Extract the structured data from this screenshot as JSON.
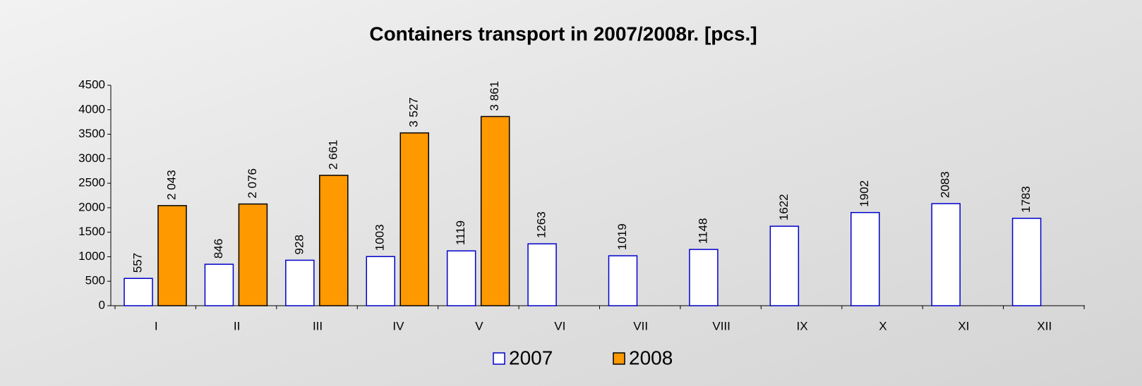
{
  "chart_data": {
    "type": "bar",
    "title": "Containers transport in 2007/2008r. [pcs.]",
    "categories": [
      "I",
      "II",
      "III",
      "IV",
      "V",
      "VI",
      "VII",
      "VIII",
      "IX",
      "X",
      "XI",
      "XII"
    ],
    "series": [
      {
        "name": "2007",
        "color": "#ffffff",
        "stroke": "#0000cc",
        "values": [
          557,
          846,
          928,
          1003,
          1119,
          1263,
          1019,
          1148,
          1622,
          1902,
          2083,
          1783
        ]
      },
      {
        "name": "2008",
        "color": "#ff9900",
        "stroke": "#000000",
        "values": [
          2043,
          2076,
          2661,
          3527,
          3861,
          null,
          null,
          null,
          null,
          null,
          null,
          null
        ],
        "value_labels": [
          "2 043",
          "2 076",
          "2 661",
          "3 527",
          "3 861",
          null,
          null,
          null,
          null,
          null,
          null,
          null
        ]
      }
    ],
    "ylim": [
      0,
      4500
    ],
    "yticks": [
      0,
      500,
      1000,
      1500,
      2000,
      2500,
      3000,
      3500,
      4000,
      4500
    ],
    "grid": false,
    "legend": "bottom"
  }
}
